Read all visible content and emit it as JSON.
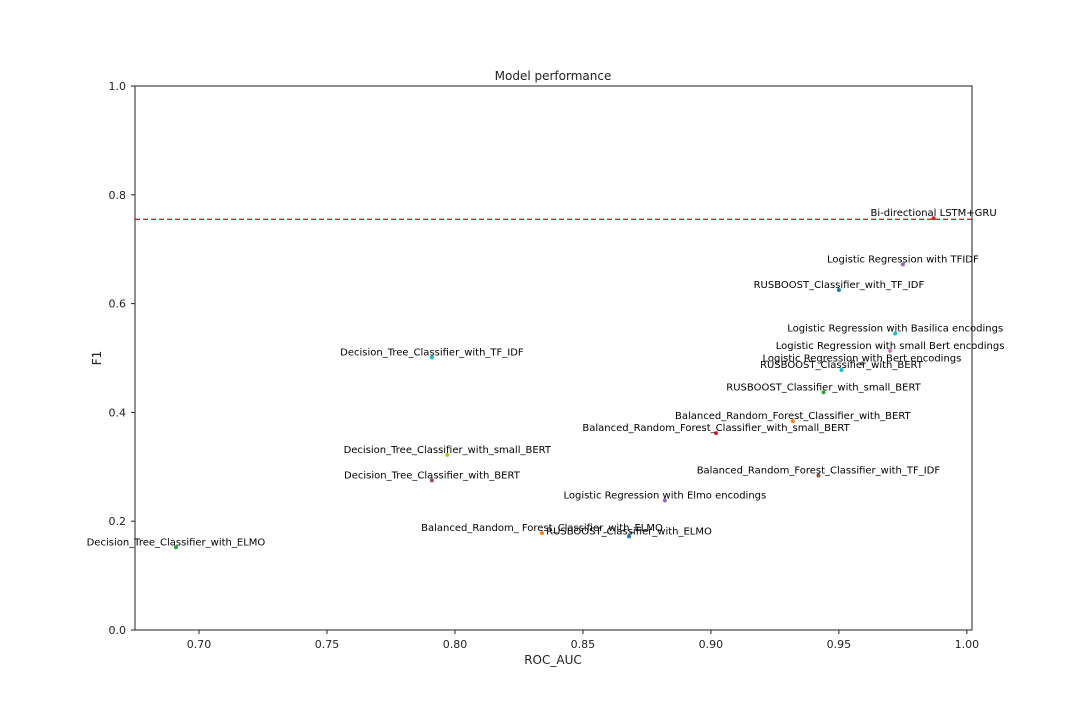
{
  "chart_data": {
    "type": "scatter",
    "title": "Model performance",
    "xlabel": "ROC_AUC",
    "ylabel": "F1",
    "xlim": [
      0.675,
      1.002
    ],
    "ylim": [
      0.0,
      1.0
    ],
    "x_ticks": [
      "0.70",
      "0.75",
      "0.80",
      "0.85",
      "0.90",
      "0.95",
      "1.00"
    ],
    "y_ticks": [
      "0.0",
      "0.2",
      "0.4",
      "0.6",
      "0.8",
      "1.0"
    ],
    "grid": false,
    "reference_line": {
      "y": 0.755,
      "color": "#ee2222",
      "style": "dashed"
    },
    "points": [
      {
        "label": "Bi-directional LSTM+GRU",
        "x": 0.987,
        "y": 0.757,
        "color": "#d62728"
      },
      {
        "label": "Logistic Regression with TFIDF",
        "x": 0.975,
        "y": 0.672,
        "color": "#9467bd"
      },
      {
        "label": "RUSBOOST_Classifier_with_TF_IDF",
        "x": 0.95,
        "y": 0.625,
        "color": "#1f77b4"
      },
      {
        "label": "Logistic Regression with Basilica encodings",
        "x": 0.972,
        "y": 0.545,
        "color": "#17becf"
      },
      {
        "label": "Logistic Regression with small Bert encodings",
        "x": 0.97,
        "y": 0.513,
        "color": "#e377c2"
      },
      {
        "label": "Logistic Regression with Bert encodings",
        "x": 0.959,
        "y": 0.49,
        "color": "#7f7f7f"
      },
      {
        "label": "RUSBOOST_Classifier_with_BERT",
        "x": 0.951,
        "y": 0.478,
        "color": "#17becf"
      },
      {
        "label": "RUSBOOST_Classifier_with_small_BERT",
        "x": 0.944,
        "y": 0.437,
        "color": "#2ca02c"
      },
      {
        "label": "Decision_Tree_Classifier_with_TF_IDF",
        "x": 0.791,
        "y": 0.501,
        "color": "#17becf"
      },
      {
        "label": "Balanced_Random_Forest_Classifier_with_BERT",
        "x": 0.932,
        "y": 0.384,
        "color": "#ff7f0e"
      },
      {
        "label": "Balanced_Random_Forest_Classifier_with_small_BERT",
        "x": 0.902,
        "y": 0.362,
        "color": "#d62728"
      },
      {
        "label": "Decision_Tree_Classifier_with_small_BERT",
        "x": 0.797,
        "y": 0.322,
        "color": "#bcbd22"
      },
      {
        "label": "Balanced_Random_Forest_Classifier_with_TF_IDF",
        "x": 0.942,
        "y": 0.284,
        "color": "#8c564b"
      },
      {
        "label": "Decision_Tree_Classifier_with_BERT",
        "x": 0.791,
        "y": 0.275,
        "color": "#8c564b"
      },
      {
        "label": "Logistic Regression with Elmo encodings",
        "x": 0.882,
        "y": 0.238,
        "color": "#9467bd"
      },
      {
        "label": "Balanced_Random_ Forest_Classifier_with_ELMO",
        "x": 0.834,
        "y": 0.178,
        "color": "#ff7f0e"
      },
      {
        "label": "RUSBOOST_Classifier_with_ELMO",
        "x": 0.868,
        "y": 0.172,
        "color": "#1f77b4"
      },
      {
        "label": "Decision_Tree_Classifier_with_ELMO",
        "x": 0.691,
        "y": 0.152,
        "color": "#2ca02c"
      }
    ]
  }
}
